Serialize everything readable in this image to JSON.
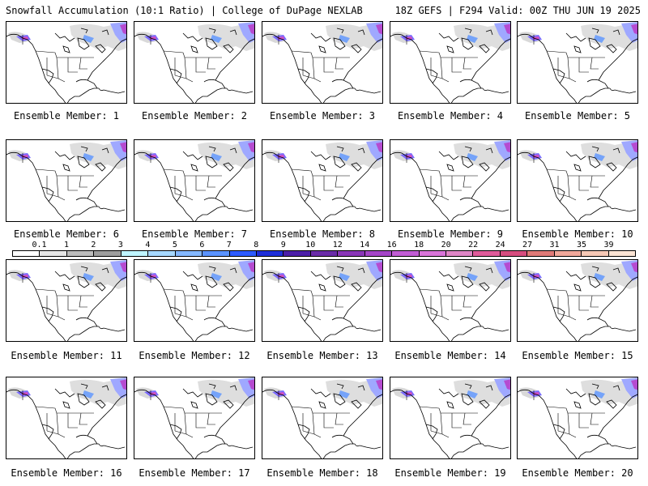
{
  "header": {
    "left": "Snowfall Accumulation (10:1 Ratio) | College of DuPage NEXLAB",
    "right": "18Z GEFS | F294 Valid: 00Z THU JUN 19 2025"
  },
  "colorbar": {
    "labels": [
      "0.1",
      "1",
      "2",
      "3",
      "4",
      "5",
      "6",
      "7",
      "8",
      "9",
      "10",
      "12",
      "14",
      "16",
      "18",
      "20",
      "22",
      "24",
      "27",
      "31",
      "35",
      "39"
    ],
    "colors": [
      "#ffffff",
      "#e6e6e6",
      "#bdbdbd",
      "#9e9e9e",
      "#bff5ff",
      "#a6d8ff",
      "#84b8ff",
      "#5a93ff",
      "#2d5bff",
      "#1e2ed9",
      "#4b1ea8",
      "#6a2ba8",
      "#8a36b8",
      "#a545c8",
      "#c25cd5",
      "#d974d9",
      "#e086c7",
      "#e05a9a",
      "#d64d7f",
      "#e07a78",
      "#f0a79a",
      "#f6c8b5",
      "#fbe4d4"
    ]
  },
  "panels": [
    {
      "label": "Ensemble Member: 1"
    },
    {
      "label": "Ensemble Member: 2"
    },
    {
      "label": "Ensemble Member: 3"
    },
    {
      "label": "Ensemble Member: 4"
    },
    {
      "label": "Ensemble Member: 5"
    },
    {
      "label": "Ensemble Member: 6"
    },
    {
      "label": "Ensemble Member: 7"
    },
    {
      "label": "Ensemble Member: 8"
    },
    {
      "label": "Ensemble Member: 9"
    },
    {
      "label": "Ensemble Member: 10"
    },
    {
      "label": "Ensemble Member: 11"
    },
    {
      "label": "Ensemble Member: 12"
    },
    {
      "label": "Ensemble Member: 13"
    },
    {
      "label": "Ensemble Member: 14"
    },
    {
      "label": "Ensemble Member: 15"
    },
    {
      "label": "Ensemble Member: 16"
    },
    {
      "label": "Ensemble Member: 17"
    },
    {
      "label": "Ensemble Member: 18"
    },
    {
      "label": "Ensemble Member: 19"
    },
    {
      "label": "Ensemble Member: 20"
    }
  ]
}
